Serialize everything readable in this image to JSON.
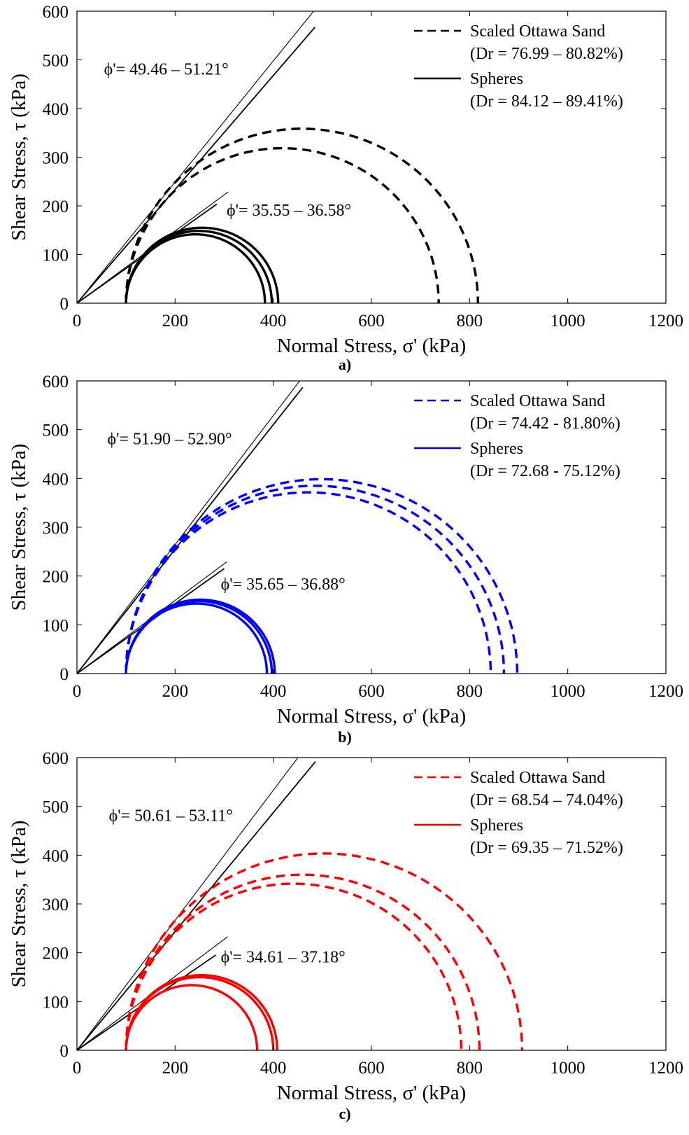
{
  "chart_data": [
    {
      "type": "line",
      "panel_label": "a)",
      "xlabel": "Normal Stress, σ' (kPa)",
      "ylabel": "Shear Stress, τ (kPa)",
      "xlim": [
        0,
        1200
      ],
      "ylim": [
        0,
        600
      ],
      "xticks": [
        "0",
        "200",
        "400",
        "600",
        "800",
        "1000",
        "1200"
      ],
      "yticks": [
        "0",
        "100",
        "200",
        "300",
        "400",
        "500",
        "600"
      ],
      "grid": false,
      "legend_position": "top-right",
      "color": "#000000",
      "legend": [
        {
          "label": "Scaled Ottawa Sand",
          "sub": "(Dr = 76.99 – 80.82%)",
          "style": "dashed"
        },
        {
          "label": "Spheres",
          "sub": "(Dr = 84.12 – 89.41%)",
          "style": "solid"
        }
      ],
      "series": [
        {
          "name": "Scaled Ottawa Sand",
          "style": "dashed",
          "circles": [
            {
              "sigma3": 100,
              "sigma1": 737
            },
            {
              "sigma3": 100,
              "sigma1": 817
            }
          ]
        },
        {
          "name": "Spheres",
          "style": "solid",
          "circles": [
            {
              "sigma3": 100,
              "sigma1": 383
            },
            {
              "sigma3": 100,
              "sigma1": 397
            },
            {
              "sigma3": 100,
              "sigma1": 410
            }
          ]
        }
      ],
      "envelopes": [
        {
          "phi": 49.46,
          "x_end": 485
        },
        {
          "phi": 51.21,
          "x_end": 482
        },
        {
          "phi": 35.55,
          "x_end": 285
        },
        {
          "phi": 36.58,
          "x_end": 308
        }
      ],
      "annotations": [
        {
          "text": "ϕ'= 49.46 – 51.21°",
          "x": 55,
          "y": 470
        },
        {
          "text": "ϕ'= 35.55 – 36.58°",
          "x": 305,
          "y": 180
        }
      ]
    },
    {
      "type": "line",
      "panel_label": "b)",
      "xlabel": "Normal Stress, σ' (kPa)",
      "ylabel": "Shear Stress, τ (kPa)",
      "xlim": [
        0,
        1200
      ],
      "ylim": [
        0,
        600
      ],
      "xticks": [
        "0",
        "200",
        "400",
        "600",
        "800",
        "1000",
        "1200"
      ],
      "yticks": [
        "0",
        "100",
        "200",
        "300",
        "400",
        "500",
        "600"
      ],
      "grid": false,
      "legend_position": "top-right",
      "color": "#0000ff",
      "legend": [
        {
          "label": "Scaled Ottawa Sand",
          "sub": "(Dr = 74.42 - 81.80%)",
          "style": "dashed"
        },
        {
          "label": "Spheres",
          "sub": "(Dr = 72.68 - 75.12%)",
          "style": "solid"
        }
      ],
      "series": [
        {
          "name": "Scaled Ottawa Sand",
          "style": "dashed",
          "circles": [
            {
              "sigma3": 100,
              "sigma1": 843
            },
            {
              "sigma3": 100,
              "sigma1": 870
            },
            {
              "sigma3": 100,
              "sigma1": 897
            }
          ]
        },
        {
          "name": "Spheres",
          "style": "solid",
          "circles": [
            {
              "sigma3": 100,
              "sigma1": 387
            },
            {
              "sigma3": 100,
              "sigma1": 397
            },
            {
              "sigma3": 100,
              "sigma1": 403
            }
          ]
        }
      ],
      "envelopes": [
        {
          "phi": 51.9,
          "x_end": 460
        },
        {
          "phi": 52.9,
          "x_end": 458
        },
        {
          "phi": 35.65,
          "x_end": 300
        },
        {
          "phi": 36.88,
          "x_end": 305
        }
      ],
      "annotations": [
        {
          "text": "ϕ'= 51.90 – 52.90°",
          "x": 62,
          "y": 470
        },
        {
          "text": "ϕ'= 35.65 – 36.88°",
          "x": 293,
          "y": 172
        }
      ]
    },
    {
      "type": "line",
      "panel_label": "c)",
      "xlabel": "Normal Stress, σ' (kPa)",
      "ylabel": "Shear Stress, τ (kPa)",
      "xlim": [
        0,
        1200
      ],
      "ylim": [
        0,
        600
      ],
      "xticks": [
        "0",
        "200",
        "400",
        "600",
        "800",
        "1000",
        "1200"
      ],
      "yticks": [
        "0",
        "100",
        "200",
        "300",
        "400",
        "500",
        "600"
      ],
      "grid": false,
      "legend_position": "top-right",
      "color": "#ff0000",
      "legend": [
        {
          "label": "Scaled Ottawa Sand",
          "sub": "(Dr = 68.54 – 74.04%)",
          "style": "dashed"
        },
        {
          "label": "Spheres",
          "sub": "(Dr = 69.35 – 71.52%)",
          "style": "solid"
        }
      ],
      "series": [
        {
          "name": "Scaled Ottawa Sand",
          "style": "dashed",
          "circles": [
            {
              "sigma3": 100,
              "sigma1": 783
            },
            {
              "sigma3": 100,
              "sigma1": 820
            },
            {
              "sigma3": 100,
              "sigma1": 907
            }
          ]
        },
        {
          "name": "Spheres",
          "style": "solid",
          "circles": [
            {
              "sigma3": 100,
              "sigma1": 367
            },
            {
              "sigma3": 100,
              "sigma1": 400
            },
            {
              "sigma3": 100,
              "sigma1": 408
            }
          ]
        }
      ],
      "envelopes": [
        {
          "phi": 50.61,
          "x_end": 486
        },
        {
          "phi": 53.11,
          "x_end": 478
        },
        {
          "phi": 34.61,
          "x_end": 283
        },
        {
          "phi": 37.18,
          "x_end": 307
        }
      ],
      "annotations": [
        {
          "text": "ϕ'= 50.61 – 53.11°",
          "x": 65,
          "y": 470
        },
        {
          "text": "ϕ'= 34.61 – 37.18°",
          "x": 293,
          "y": 180
        }
      ]
    }
  ]
}
